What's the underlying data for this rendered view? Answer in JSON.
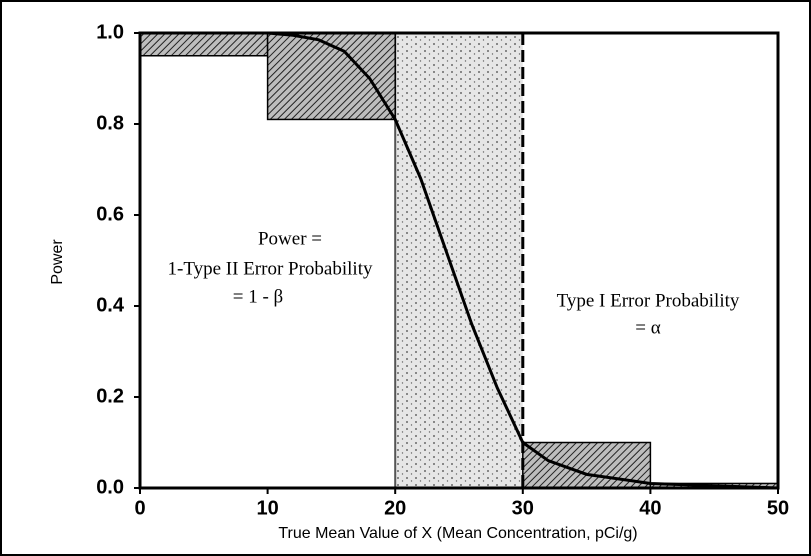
{
  "chart_data": {
    "type": "line",
    "xlabel": "True Mean Value of X (Mean Concentration, pCi/g)",
    "ylabel": "Power",
    "x": [
      0,
      5,
      10,
      12,
      14,
      16,
      18,
      20,
      22,
      24,
      26,
      28,
      30,
      32,
      35,
      40,
      45,
      50
    ],
    "values": [
      1,
      1,
      1,
      0.995,
      0.985,
      0.96,
      0.9,
      0.81,
      0.68,
      0.52,
      0.36,
      0.22,
      0.1,
      0.06,
      0.03,
      0.01,
      0.005,
      0
    ],
    "color": "#000000",
    "boxes": [
      {
        "x": [
          0,
          10
        ],
        "y": [
          0.95,
          1.0
        ]
      },
      {
        "x": [
          10,
          20
        ],
        "y": [
          0.81,
          1.0
        ]
      },
      {
        "x": [
          30,
          40
        ],
        "y": [
          0,
          0.1
        ]
      },
      {
        "x": [
          40,
          50
        ],
        "y": [
          0,
          0.01
        ]
      }
    ],
    "gray_region": [
      20,
      30
    ],
    "action_level": 30,
    "annotations": [
      "Power =",
      "1-Type II Error Probability",
      "= 1 - β",
      "Type I Error Probability",
      "= α"
    ],
    "xlim": [
      0,
      50
    ],
    "ylim": [
      0,
      1
    ],
    "xticks": [
      0,
      10,
      20,
      30,
      40,
      50
    ],
    "yticks": [
      {
        "value": 0,
        "label": "0.0"
      },
      0.2,
      0.4,
      0.6,
      0.8,
      {
        "value": 1,
        "label": "1.0"
      }
    ]
  }
}
